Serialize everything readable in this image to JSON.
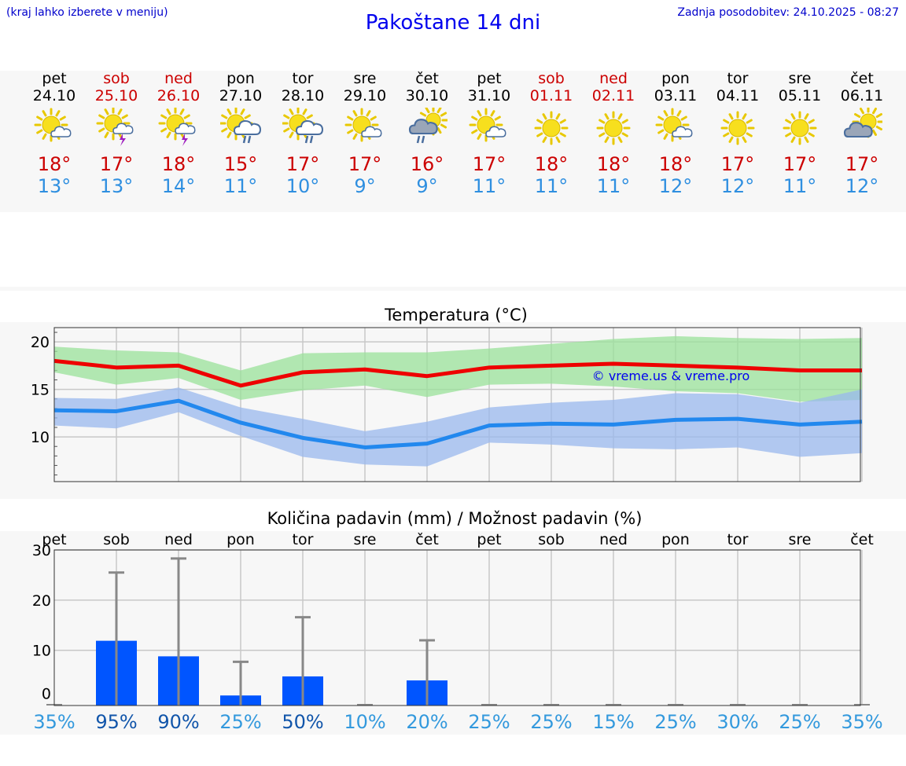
{
  "header": {
    "hint": "(kraj lahko izberete v meniju)",
    "title": "Pakoštane 14 dni",
    "updated": "Zadnja posodobitev: 24.10.2025 - 08:27"
  },
  "days": [
    {
      "name": "pet",
      "date": "24.10",
      "weekend": false,
      "icon": "sun-cloud-icon",
      "tmax": "18°",
      "tmin": "13°"
    },
    {
      "name": "sob",
      "date": "25.10",
      "weekend": true,
      "icon": "sun-thunder-icon",
      "tmax": "17°",
      "tmin": "13°"
    },
    {
      "name": "ned",
      "date": "26.10",
      "weekend": true,
      "icon": "sun-thunder-icon",
      "tmax": "18°",
      "tmin": "14°"
    },
    {
      "name": "pon",
      "date": "27.10",
      "weekend": false,
      "icon": "sun-cloud-rain-icon",
      "tmax": "15°",
      "tmin": "11°"
    },
    {
      "name": "tor",
      "date": "28.10",
      "weekend": false,
      "icon": "sun-cloud-rain-icon",
      "tmax": "17°",
      "tmin": "10°"
    },
    {
      "name": "sre",
      "date": "29.10",
      "weekend": false,
      "icon": "sun-cloud-icon",
      "tmax": "17°",
      "tmin": "9°"
    },
    {
      "name": "čet",
      "date": "30.10",
      "weekend": false,
      "icon": "cloud-rain-icon",
      "tmax": "16°",
      "tmin": "9°"
    },
    {
      "name": "pet",
      "date": "31.10",
      "weekend": false,
      "icon": "sun-cloud-icon",
      "tmax": "17°",
      "tmin": "11°"
    },
    {
      "name": "sob",
      "date": "01.11",
      "weekend": true,
      "icon": "sun-icon",
      "tmax": "18°",
      "tmin": "11°"
    },
    {
      "name": "ned",
      "date": "02.11",
      "weekend": true,
      "icon": "sun-icon",
      "tmax": "18°",
      "tmin": "11°"
    },
    {
      "name": "pon",
      "date": "03.11",
      "weekend": false,
      "icon": "sun-cloud-icon",
      "tmax": "18°",
      "tmin": "12°"
    },
    {
      "name": "tor",
      "date": "04.11",
      "weekend": false,
      "icon": "sun-icon",
      "tmax": "17°",
      "tmin": "12°"
    },
    {
      "name": "sre",
      "date": "05.11",
      "weekend": false,
      "icon": "sun-icon",
      "tmax": "17°",
      "tmin": "11°"
    },
    {
      "name": "čet",
      "date": "06.11",
      "weekend": false,
      "icon": "cloud-sun-icon",
      "tmax": "17°",
      "tmin": "12°"
    }
  ],
  "chart_data": [
    {
      "type": "line",
      "title": "Temperatura (°C)",
      "watermark": "© vreme.us & vreme.pro",
      "ylim": [
        5.3,
        21.5
      ],
      "yticks": [
        10,
        15,
        20
      ],
      "grid": true,
      "x": [
        0,
        1,
        2,
        3,
        4,
        5,
        6,
        7,
        8,
        9,
        10,
        11,
        12,
        13
      ],
      "series": [
        {
          "color": "#ee0000",
          "values": [
            18.0,
            17.3,
            17.5,
            15.4,
            16.8,
            17.1,
            16.4,
            17.3,
            17.5,
            17.7,
            17.5,
            17.3,
            17.0,
            17.0
          ]
        },
        {
          "color": "#2288ee",
          "values": [
            12.8,
            12.7,
            13.8,
            11.5,
            9.9,
            8.9,
            9.3,
            11.2,
            11.4,
            11.3,
            11.8,
            11.9,
            11.3,
            11.6
          ]
        }
      ],
      "bands": [
        {
          "color": "#99e199",
          "upper": [
            19.5,
            19.1,
            18.9,
            17.0,
            18.8,
            18.9,
            18.9,
            19.3,
            19.8,
            20.3,
            20.6,
            20.4,
            20.3,
            20.4
          ],
          "lower": [
            16.8,
            15.5,
            16.2,
            13.9,
            14.9,
            15.4,
            14.2,
            15.5,
            15.6,
            15.3,
            14.8,
            14.6,
            13.7,
            13.9
          ]
        },
        {
          "color": "#99b8ee",
          "upper": [
            14.1,
            14.0,
            15.2,
            13.1,
            11.9,
            10.6,
            11.6,
            13.1,
            13.6,
            13.9,
            14.6,
            14.5,
            13.6,
            15.0
          ],
          "lower": [
            11.2,
            10.9,
            12.6,
            10.1,
            7.9,
            7.1,
            6.9,
            9.4,
            9.2,
            8.8,
            8.7,
            8.9,
            7.9,
            8.3
          ]
        }
      ]
    },
    {
      "type": "bar",
      "title": "Količina padavin (mm) / Možnost padavin (%)",
      "categories": [
        "pet",
        "sob",
        "ned",
        "pon",
        "tor",
        "sre",
        "čet",
        "pet",
        "sob",
        "ned",
        "pon",
        "tor",
        "sre",
        "čet"
      ],
      "ylim": [
        -1,
        30
      ],
      "yticks": [
        0,
        10,
        20,
        30
      ],
      "values": [
        0,
        11.9,
        8.8,
        1.0,
        4.8,
        0,
        4.0,
        0,
        0,
        0,
        0,
        0,
        0,
        0
      ],
      "error_max": [
        0,
        25.5,
        28.3,
        7.7,
        16.6,
        0,
        12.0,
        0,
        0,
        0,
        0,
        0,
        0,
        0
      ],
      "probability": [
        "35%",
        "95%",
        "90%",
        "25%",
        "50%",
        "10%",
        "20%",
        "25%",
        "25%",
        "15%",
        "25%",
        "30%",
        "25%",
        "35%"
      ],
      "probability_strong": [
        false,
        true,
        true,
        false,
        true,
        false,
        false,
        false,
        false,
        false,
        false,
        false,
        false,
        false
      ],
      "colors": {
        "bar": "#0055ff",
        "error": "#888888",
        "prob_light": "#3399dd",
        "prob_strong": "#1155aa"
      }
    }
  ]
}
